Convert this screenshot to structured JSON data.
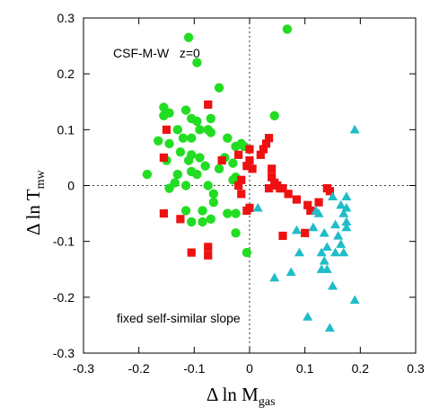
{
  "chart_data": {
    "type": "scatter",
    "title": "",
    "xlabel": {
      "main": "Δ ln M",
      "sub": "gas"
    },
    "ylabel": {
      "main": "Δ ln T",
      "sub": "mw"
    },
    "xlim": [
      -0.3,
      0.3
    ],
    "ylim": [
      -0.3,
      0.3
    ],
    "xticks": [
      -0.3,
      -0.2,
      -0.1,
      0,
      0.1,
      0.2,
      0.3
    ],
    "yticks": [
      -0.3,
      -0.2,
      -0.1,
      0,
      0.1,
      0.2,
      0.3
    ],
    "xtick_labels": [
      "-0.3",
      "-0.2",
      "-0.1",
      "0",
      "0.1",
      "0.2",
      "0.3"
    ],
    "ytick_labels": [
      "-0.3",
      "-0.2",
      "-0.1",
      "0",
      "0.1",
      "0.2",
      "0.3"
    ],
    "reference_lines": {
      "x0": true,
      "y0": true,
      "style": "dotted"
    },
    "annotations": [
      "CSF-M-W   z=0",
      "fixed self-similar slope"
    ],
    "colors": {
      "green": "#22dd22",
      "red": "#ee1111",
      "cyan": "#1fbdc8"
    },
    "series": [
      {
        "marker": "circle",
        "color": "#22dd22",
        "points": [
          [
            -0.11,
            0.265
          ],
          [
            0.068,
            0.28
          ],
          [
            -0.095,
            0.22
          ],
          [
            -0.055,
            0.175
          ],
          [
            -0.155,
            0.14
          ],
          [
            -0.145,
            0.13
          ],
          [
            -0.155,
            0.125
          ],
          [
            -0.115,
            0.135
          ],
          [
            -0.105,
            0.12
          ],
          [
            -0.095,
            0.115
          ],
          [
            -0.07,
            0.12
          ],
          [
            0.045,
            0.125
          ],
          [
            -0.09,
            0.1
          ],
          [
            -0.13,
            0.1
          ],
          [
            -0.075,
            0.1
          ],
          [
            -0.07,
            0.095
          ],
          [
            -0.12,
            0.085
          ],
          [
            -0.105,
            0.085
          ],
          [
            -0.165,
            0.08
          ],
          [
            -0.145,
            0.075
          ],
          [
            -0.125,
            0.06
          ],
          [
            -0.105,
            0.055
          ],
          [
            -0.09,
            0.05
          ],
          [
            -0.11,
            0.045
          ],
          [
            -0.15,
            0.045
          ],
          [
            -0.04,
            0.085
          ],
          [
            -0.025,
            0.07
          ],
          [
            -0.01,
            0.07
          ],
          [
            -0.015,
            0.075
          ],
          [
            -0.045,
            0.05
          ],
          [
            -0.03,
            0.04
          ],
          [
            -0.08,
            0.035
          ],
          [
            -0.185,
            0.02
          ],
          [
            -0.13,
            0.02
          ],
          [
            -0.105,
            0.025
          ],
          [
            -0.095,
            0.02
          ],
          [
            -0.055,
            0.03
          ],
          [
            -0.135,
            0.005
          ],
          [
            -0.115,
            0.0
          ],
          [
            -0.025,
            0.015
          ],
          [
            -0.03,
            0.01
          ],
          [
            -0.145,
            -0.005
          ],
          [
            -0.075,
            0.0
          ],
          [
            -0.065,
            -0.015
          ],
          [
            -0.065,
            -0.03
          ],
          [
            -0.115,
            -0.045
          ],
          [
            -0.085,
            -0.045
          ],
          [
            -0.025,
            -0.05
          ],
          [
            -0.04,
            -0.05
          ],
          [
            -0.105,
            -0.065
          ],
          [
            -0.085,
            -0.065
          ],
          [
            -0.07,
            -0.06
          ],
          [
            -0.025,
            -0.085
          ],
          [
            -0.005,
            -0.12
          ]
        ]
      },
      {
        "marker": "square",
        "color": "#ee1111",
        "points": [
          [
            -0.075,
            0.145
          ],
          [
            -0.15,
            0.1
          ],
          [
            -0.155,
            0.05
          ],
          [
            0.035,
            0.085
          ],
          [
            0.03,
            0.075
          ],
          [
            0.0,
            0.065
          ],
          [
            0.025,
            0.065
          ],
          [
            0.02,
            0.055
          ],
          [
            -0.05,
            0.045
          ],
          [
            -0.02,
            0.055
          ],
          [
            0.0,
            0.045
          ],
          [
            -0.005,
            0.035
          ],
          [
            0.005,
            0.03
          ],
          [
            0.04,
            0.03
          ],
          [
            0.04,
            0.015
          ],
          [
            -0.015,
            0.01
          ],
          [
            0.045,
            0.005
          ],
          [
            0.035,
            -0.005
          ],
          [
            -0.02,
            0.0
          ],
          [
            0.05,
            0.0
          ],
          [
            0.06,
            -0.005
          ],
          [
            0.055,
            -0.005
          ],
          [
            0.07,
            -0.015
          ],
          [
            0.085,
            -0.025
          ],
          [
            0.105,
            -0.035
          ],
          [
            0.11,
            -0.045
          ],
          [
            0.14,
            -0.005
          ],
          [
            0.145,
            -0.01
          ],
          [
            -0.005,
            -0.045
          ],
          [
            0.0,
            -0.04
          ],
          [
            -0.155,
            -0.05
          ],
          [
            -0.125,
            -0.06
          ],
          [
            -0.105,
            -0.12
          ],
          [
            -0.075,
            -0.11
          ],
          [
            -0.075,
            -0.125
          ],
          [
            0.06,
            -0.09
          ],
          [
            0.1,
            -0.085
          ],
          [
            0.125,
            -0.03
          ],
          [
            -0.015,
            -0.015
          ]
        ]
      },
      {
        "marker": "triangle",
        "color": "#1fbdc8",
        "points": [
          [
            0.19,
            0.1
          ],
          [
            0.175,
            -0.02
          ],
          [
            0.165,
            -0.035
          ],
          [
            0.15,
            -0.02
          ],
          [
            0.175,
            -0.04
          ],
          [
            0.12,
            -0.045
          ],
          [
            0.125,
            -0.05
          ],
          [
            0.115,
            -0.075
          ],
          [
            0.135,
            -0.085
          ],
          [
            0.155,
            -0.07
          ],
          [
            0.16,
            -0.09
          ],
          [
            0.17,
            -0.05
          ],
          [
            0.175,
            -0.065
          ],
          [
            0.175,
            -0.075
          ],
          [
            0.165,
            -0.105
          ],
          [
            0.14,
            -0.11
          ],
          [
            0.13,
            -0.12
          ],
          [
            0.155,
            -0.12
          ],
          [
            0.17,
            -0.12
          ],
          [
            0.135,
            -0.135
          ],
          [
            0.13,
            -0.15
          ],
          [
            0.14,
            -0.15
          ],
          [
            0.09,
            -0.12
          ],
          [
            0.075,
            -0.155
          ],
          [
            0.045,
            -0.165
          ],
          [
            0.15,
            -0.18
          ],
          [
            0.19,
            -0.205
          ],
          [
            0.105,
            -0.235
          ],
          [
            0.145,
            -0.255
          ],
          [
            0.015,
            -0.04
          ],
          [
            0.085,
            -0.08
          ]
        ]
      }
    ]
  }
}
